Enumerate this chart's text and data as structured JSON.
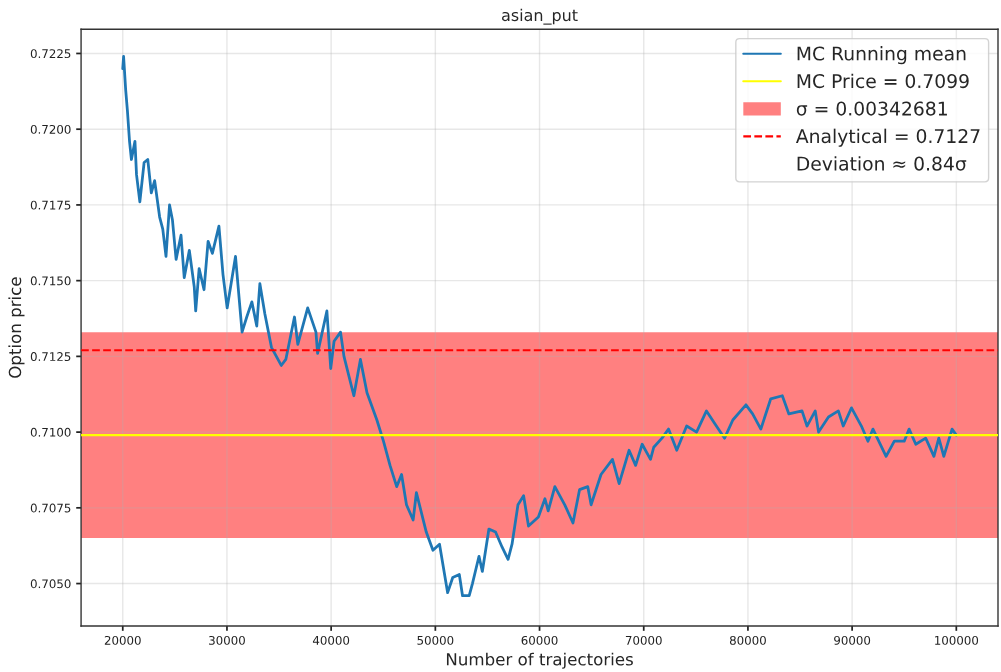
{
  "chart_data": {
    "type": "line",
    "title": "asian_put",
    "xlabel": "Number of trajectories",
    "ylabel": "Option price",
    "xlim": [
      16000,
      104000
    ],
    "ylim": [
      0.7036,
      0.7233
    ],
    "xticks": [
      20000,
      30000,
      40000,
      50000,
      60000,
      70000,
      80000,
      90000,
      100000
    ],
    "yticks": [
      {
        "value": 0.705,
        "label": "0.7050"
      },
      0.7075,
      {
        "value": 0.71,
        "label": "0.7100"
      },
      0.7125,
      {
        "value": 0.715,
        "label": "0.7150"
      },
      0.7175,
      {
        "value": 0.72,
        "label": "0.7200"
      },
      0.7225
    ],
    "grid": true,
    "legend": "top right",
    "series": [
      {
        "name": "MC Running mean",
        "color": "#1f77b4",
        "x": [
          20000,
          20080,
          20280,
          20450,
          20650,
          20830,
          21170,
          21320,
          21640,
          22050,
          22400,
          22740,
          23060,
          23540,
          23840,
          24150,
          24490,
          24770,
          25120,
          25590,
          25900,
          26390,
          26860,
          27000,
          27330,
          27800,
          28190,
          28600,
          29230,
          29620,
          30020,
          30820,
          31450,
          31900,
          32390,
          32860,
          33160,
          33640,
          34270,
          35210,
          35650,
          36480,
          36800,
          37750,
          38540,
          38700,
          39590,
          39960,
          40280,
          40900,
          41230,
          42180,
          42810,
          43440,
          44390,
          45020,
          45650,
          46290,
          46760,
          47230,
          47870,
          48180,
          49130,
          49770,
          50400,
          51180,
          51670,
          52300,
          52610,
          53250,
          53560,
          54190,
          54510,
          55140,
          55780,
          56410,
          56980,
          57360,
          57930,
          58470,
          58940,
          59890,
          60520,
          60830,
          61470,
          62420,
          63210,
          63840,
          64630,
          64950,
          65900,
          67000,
          67640,
          68590,
          69220,
          69850,
          70650,
          70960,
          71750,
          72380,
          73170,
          74120,
          75070,
          76020,
          76970,
          77760,
          78550,
          79810,
          80450,
          81240,
          82190,
          83300,
          83930,
          85190,
          85670,
          86460,
          86780,
          87730,
          88680,
          89150,
          89940,
          90890,
          91520,
          92000,
          93260,
          94050,
          95000,
          95470,
          96110,
          97060,
          97850,
          98320,
          98800,
          99590,
          100000
        ],
        "values": [
          0.722,
          0.7224,
          0.7213,
          0.7206,
          0.7196,
          0.719,
          0.7196,
          0.7185,
          0.7176,
          0.7189,
          0.719,
          0.7179,
          0.7183,
          0.7171,
          0.7167,
          0.7158,
          0.7175,
          0.717,
          0.7157,
          0.7165,
          0.7151,
          0.716,
          0.7148,
          0.714,
          0.7154,
          0.7147,
          0.7163,
          0.7159,
          0.7168,
          0.7152,
          0.7141,
          0.7158,
          0.7133,
          0.7138,
          0.7143,
          0.7135,
          0.7149,
          0.7139,
          0.7128,
          0.7122,
          0.7124,
          0.7138,
          0.7129,
          0.7141,
          0.7133,
          0.7126,
          0.714,
          0.7121,
          0.713,
          0.7133,
          0.7125,
          0.7112,
          0.7124,
          0.7113,
          0.7104,
          0.7097,
          0.7089,
          0.7082,
          0.7086,
          0.7076,
          0.7071,
          0.708,
          0.7067,
          0.7061,
          0.7063,
          0.7047,
          0.7052,
          0.7053,
          0.7046,
          0.7046,
          0.705,
          0.7059,
          0.7054,
          0.7068,
          0.7067,
          0.7062,
          0.7058,
          0.7063,
          0.7076,
          0.7079,
          0.7069,
          0.7072,
          0.7078,
          0.7074,
          0.7082,
          0.7076,
          0.707,
          0.7081,
          0.7082,
          0.7076,
          0.7086,
          0.7091,
          0.7083,
          0.7094,
          0.7089,
          0.7096,
          0.7091,
          0.7095,
          0.7098,
          0.7101,
          0.7094,
          0.7102,
          0.71,
          0.7107,
          0.7102,
          0.7098,
          0.7104,
          0.7109,
          0.7106,
          0.7101,
          0.7111,
          0.7112,
          0.7106,
          0.7107,
          0.7102,
          0.7107,
          0.71,
          0.7105,
          0.7107,
          0.7102,
          0.7108,
          0.7102,
          0.7097,
          0.7101,
          0.7092,
          0.7097,
          0.7097,
          0.7101,
          0.7096,
          0.7098,
          0.7092,
          0.7098,
          0.7092,
          0.7101,
          0.7099
        ]
      }
    ],
    "ref_lines": [
      {
        "axis": "y",
        "value": 0.7099,
        "label": "MC Price = 0.7099",
        "color": "#ffff00",
        "line_style": "solid"
      },
      {
        "axis": "y",
        "value": 0.7127,
        "label": "Analytical = 0.7127",
        "color": "#ff0000",
        "line_style": "dashed"
      }
    ],
    "bands": [
      {
        "axis": "y",
        "from": 0.7065,
        "to": 0.7133,
        "label": "σ = 0.00342681",
        "color": "#ff8080"
      }
    ],
    "annotations": [
      "Deviation ≈ 0.84σ"
    ]
  }
}
